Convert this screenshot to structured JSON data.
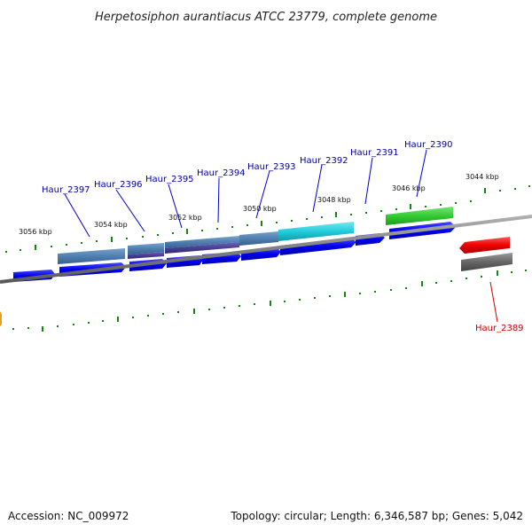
{
  "title": "Herpetosiphon aurantiacus ATCC 23779, complete genome",
  "footer": {
    "accession": "Accession: NC_009972",
    "topology": "Topology: circular; Length: 6,346,587 bp; Genes: 5,042"
  },
  "kbp_labels": [
    "3056 kbp",
    "3054 kbp",
    "3052 kbp",
    "3050 kbp",
    "3048 kbp",
    "3046 kbp",
    "3044 kbp"
  ],
  "genes": [
    {
      "name": "Haur_2397",
      "color": "#0000aa"
    },
    {
      "name": "Haur_2396",
      "color": "#0000aa"
    },
    {
      "name": "Haur_2395",
      "color": "#0000aa"
    },
    {
      "name": "Haur_2394",
      "color": "#0000aa"
    },
    {
      "name": "Haur_2393",
      "color": "#0000aa"
    },
    {
      "name": "Haur_2392",
      "color": "#0000aa"
    },
    {
      "name": "Haur_2391",
      "color": "#0000aa"
    },
    {
      "name": "Haur_2390",
      "color": "#0000aa"
    },
    {
      "name": "Haur_2389",
      "color": "#cc0000"
    }
  ],
  "colors": {
    "backbone": "#808080",
    "tick": "#118811",
    "forward_cds": "#0000ee",
    "reverse_cds": "#ee0000",
    "feature_steelblue": "#4f7fb0",
    "feature_indigo": "#4a3f96",
    "feature_cyan": "#22ccdd",
    "feature_green": "#33cc33",
    "feature_gray": "#666666"
  }
}
